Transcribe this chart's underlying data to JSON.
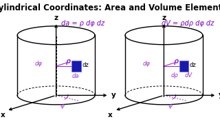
{
  "title": "Cylindrical Coordinates: Area and Volume Elements",
  "title_fontsize": 8.5,
  "bg_color": "#ffffff",
  "formula_left": "da = ρ dφ dz",
  "formula_right": "dV = ρdρ dφ dz",
  "formula_color": "#7700bb",
  "axis_color": "#000000",
  "cylinder_color": "#000000",
  "element_color": "#1a1aaa",
  "element_edge": "#6666ff",
  "purple": "#9933cc",
  "black": "#000000",
  "x_label": "x",
  "y_label": "y",
  "z_label": "z",
  "rho_label": "ρ",
  "phi_label": "φ",
  "dphi_label": "dφ",
  "dz_label": "dz",
  "da_label": "da",
  "drho_label": "dρ",
  "dV_label": "dV"
}
